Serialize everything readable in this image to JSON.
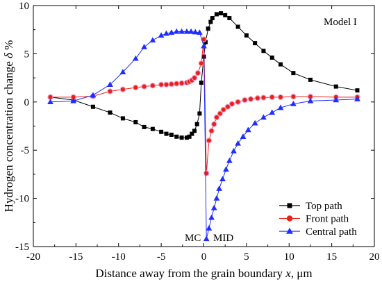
{
  "chart_data": {
    "type": "line",
    "annotation": "Model I",
    "xlabel_prefix": "Distance away from the grain boundary ",
    "xlabel_var": "x",
    "xlabel_suffix": ", μm",
    "ylabel_prefix": "Hydrogen concentration change ",
    "ylabel_var": "δ",
    "ylabel_suffix": " %",
    "xlim": [
      -20,
      20
    ],
    "ylim": [
      -15,
      10
    ],
    "xticks": [
      -20,
      -15,
      -10,
      -5,
      0,
      5,
      10,
      15,
      20
    ],
    "yticks": [
      -15,
      -10,
      -5,
      0,
      5,
      10
    ],
    "grid": false,
    "legend_position": "bottom-right",
    "labels": {
      "mc": "MC",
      "mid": "MID"
    },
    "series": [
      {
        "name": "Top path",
        "color": "#000000",
        "marker": "square",
        "x": [
          -18,
          -15.3,
          -13,
          -11,
          -9.5,
          -8,
          -7,
          -6,
          -5,
          -4.4,
          -3.8,
          -3.2,
          -2.6,
          -2,
          -1.7,
          -1.4,
          -1.1,
          -0.8,
          -0.5,
          -0.3,
          0,
          0.2,
          0.5,
          0.8,
          1,
          1.5,
          2,
          2.5,
          3,
          4,
          5,
          6,
          7,
          8,
          9,
          10.5,
          12.5,
          15.5,
          18
        ],
        "y": [
          0.5,
          0.2,
          -0.5,
          -1.1,
          -1.7,
          -2.1,
          -2.6,
          -2.8,
          -3.1,
          -3.3,
          -3.4,
          -3.6,
          -3.7,
          -3.7,
          -3.6,
          -3.3,
          -3.0,
          -2.3,
          -1.2,
          2.0,
          4.7,
          6.2,
          7.6,
          8.3,
          8.7,
          9.1,
          9.2,
          9.0,
          8.7,
          7.8,
          6.9,
          6.1,
          5.3,
          4.6,
          3.9,
          3.0,
          2.3,
          1.6,
          1.2
        ]
      },
      {
        "name": "Front path",
        "color": "#e8201b",
        "marker": "circle",
        "x": [
          -18,
          -15.3,
          -13,
          -11,
          -9.5,
          -8,
          -7,
          -6,
          -5,
          -4.4,
          -3.8,
          -3.2,
          -2.6,
          -2,
          -1.7,
          -1.4,
          -1.1,
          -0.7,
          -0.3,
          0,
          0.3,
          0.6,
          0.9,
          1.2,
          1.5,
          1.9,
          2.3,
          2.8,
          3.3,
          4,
          4.8,
          5.5,
          6.3,
          7,
          8,
          9,
          10.5,
          12.5,
          15.5,
          18
        ],
        "y": [
          0.5,
          0.5,
          0.6,
          1.1,
          1.3,
          1.5,
          1.6,
          1.7,
          1.8,
          1.8,
          1.85,
          1.9,
          1.95,
          2.0,
          2.1,
          2.25,
          2.5,
          3.0,
          4.0,
          6.5,
          -7.4,
          -4.0,
          -3.0,
          -2.3,
          -1.6,
          -1.2,
          -0.8,
          -0.5,
          -0.2,
          0.0,
          0.2,
          0.3,
          0.4,
          0.45,
          0.5,
          0.5,
          0.55,
          0.55,
          0.5,
          0.5
        ]
      },
      {
        "name": "Central path",
        "color": "#1f2eff",
        "marker": "triangle",
        "x": [
          -18,
          -15.3,
          -13,
          -11,
          -9.5,
          -8,
          -7,
          -6,
          -5,
          -4.4,
          -3.8,
          -3.2,
          -2.6,
          -2,
          -1.5,
          -1,
          -0.5,
          0,
          0.3,
          0.6,
          0.9,
          1.2,
          1.5,
          1.8,
          2.2,
          2.6,
          3,
          3.5,
          4,
          4.6,
          5.2,
          6,
          7,
          8,
          9,
          10.5,
          12.5,
          15.5,
          18
        ],
        "y": [
          0.0,
          0.1,
          0.7,
          1.8,
          3.1,
          4.5,
          5.7,
          6.4,
          6.9,
          7.1,
          7.2,
          7.3,
          7.3,
          7.3,
          7.3,
          7.25,
          7.2,
          5.8,
          -14.2,
          -13.1,
          -12.0,
          -11.0,
          -10.0,
          -9.0,
          -8.0,
          -7.0,
          -6.1,
          -5.1,
          -4.3,
          -3.6,
          -2.9,
          -2.2,
          -1.6,
          -1.1,
          -0.6,
          -0.2,
          0.1,
          0.2,
          0.3
        ]
      }
    ]
  }
}
